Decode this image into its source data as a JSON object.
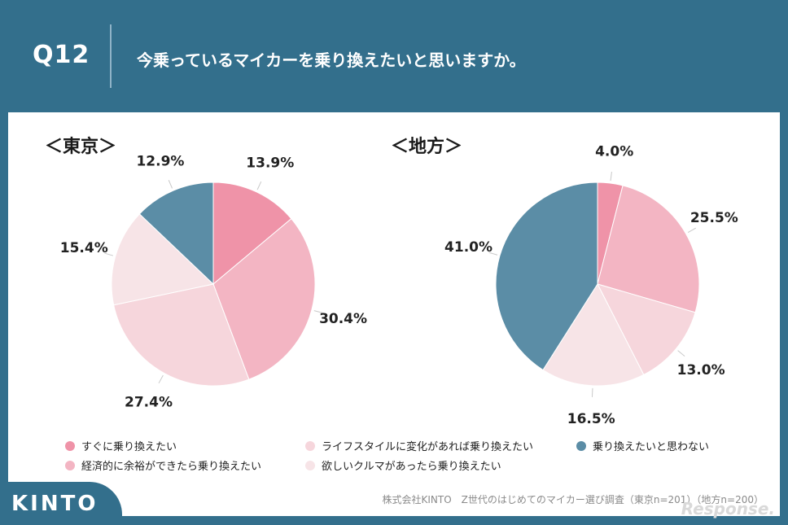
{
  "header": {
    "question_number": "Q12",
    "question_text": "今乗っているマイカーを乗り換えたいと思いますか。"
  },
  "legend": [
    {
      "label": "すぐに乗り換えたい",
      "color": "#ef93a8"
    },
    {
      "label": "ライフスタイルに変化があれば乗り換えたい",
      "color": "#f6d6dc"
    },
    {
      "label": "乗り換えたいと思わない",
      "color": "#5b8da6"
    },
    {
      "label": "経済的に余裕ができたら乗り換えたい",
      "color": "#f3b5c3"
    },
    {
      "label": "欲しいクルマがあったら乗り換えたい",
      "color": "#f7e4e7"
    }
  ],
  "chart_data": [
    {
      "type": "pie",
      "title": "＜東京＞",
      "slices": [
        {
          "category": "すぐに乗り換えたい",
          "value": 13.9,
          "label": "13.9%",
          "color": "#ef93a8"
        },
        {
          "category": "経済的に余裕ができたら乗り換えたい",
          "value": 30.4,
          "label": "30.4%",
          "color": "#f3b5c3"
        },
        {
          "category": "ライフスタイルに変化があれば乗り換えたい",
          "value": 27.4,
          "label": "27.4%",
          "color": "#f6d6dc"
        },
        {
          "category": "欲しいクルマがあったら乗り換えたい",
          "value": 15.4,
          "label": "15.4%",
          "color": "#f7e4e7"
        },
        {
          "category": "乗り換えたいと思わない",
          "value": 12.9,
          "label": "12.9%",
          "color": "#5b8da6"
        }
      ]
    },
    {
      "type": "pie",
      "title": "＜地方＞",
      "slices": [
        {
          "category": "すぐに乗り換えたい",
          "value": 4.0,
          "label": "4.0%",
          "color": "#ef93a8"
        },
        {
          "category": "経済的に余裕ができたら乗り換えたい",
          "value": 25.5,
          "label": "25.5%",
          "color": "#f3b5c3"
        },
        {
          "category": "ライフスタイルに変化があれば乗り換えたい",
          "value": 13.0,
          "label": "13.0%",
          "color": "#f6d6dc"
        },
        {
          "category": "欲しいクルマがあったら乗り換えたい",
          "value": 16.5,
          "label": "16.5%",
          "color": "#f7e4e7"
        },
        {
          "category": "乗り換えたいと思わない",
          "value": 41.0,
          "label": "41.0%",
          "color": "#5b8da6"
        }
      ]
    }
  ],
  "footer": {
    "logo": "KINTO",
    "source": "株式会社KINTO　Z世代のはじめてのマイカー選び調査（東京n=201）（地方n=200）",
    "watermark": "Response."
  },
  "colors": {
    "background": "#336f8c",
    "panel": "#ffffff",
    "slice_stroke": "#ffffff",
    "leader_line": "#c9c9c9"
  }
}
